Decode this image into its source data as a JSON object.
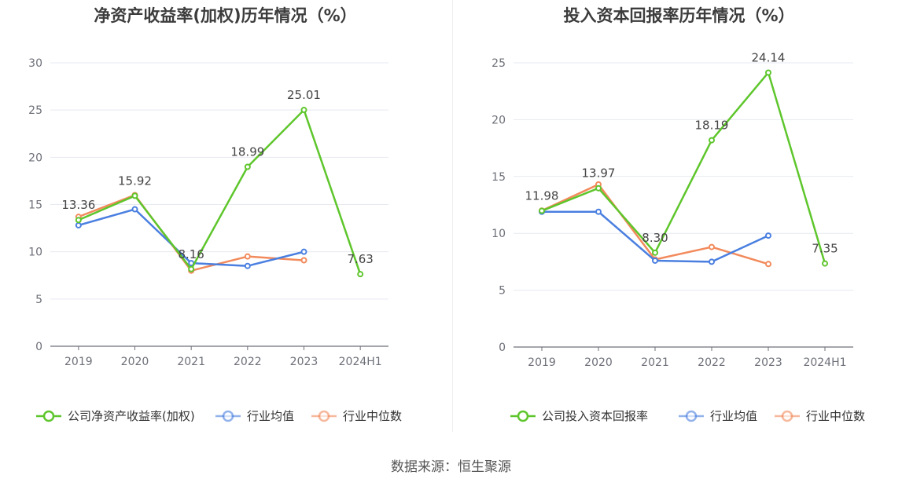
{
  "colors": {
    "company": "#5ec62c",
    "industry_avg": "#4a7fe0",
    "industry_median": "#f28a5c",
    "grid": "#e6e9f0",
    "axis": "#6e7079"
  },
  "source": "数据来源：恒生聚源",
  "chart_data": [
    {
      "type": "line",
      "title": "净资产收益率(加权)历年情况（%）",
      "categories": [
        "2019",
        "2020",
        "2021",
        "2022",
        "2023",
        "2024H1"
      ],
      "ylim": [
        0,
        30
      ],
      "yticks": [
        0,
        5,
        10,
        15,
        20,
        25,
        30
      ],
      "grid": true,
      "legend_position": "bottom",
      "series": [
        {
          "name": "公司净资产收益率(加权)",
          "color_key": "company",
          "values": [
            13.36,
            15.92,
            8.16,
            18.99,
            25.01,
            7.63
          ],
          "labels": [
            "13.36",
            "15.92",
            "8.16",
            "18.99",
            "25.01",
            "7.63"
          ]
        },
        {
          "name": "行业均值",
          "color_key": "industry_avg",
          "values": [
            12.8,
            14.5,
            8.8,
            8.5,
            10.0,
            null
          ]
        },
        {
          "name": "行业中位数",
          "color_key": "industry_median",
          "values": [
            13.7,
            16.0,
            8.0,
            9.5,
            9.1,
            null
          ]
        }
      ]
    },
    {
      "type": "line",
      "title": "投入资本回报率历年情况（%）",
      "categories": [
        "2019",
        "2020",
        "2021",
        "2022",
        "2023",
        "2024H1"
      ],
      "ylim": [
        0,
        25
      ],
      "yticks": [
        0,
        5,
        10,
        15,
        20,
        25
      ],
      "grid": true,
      "legend_position": "bottom",
      "series": [
        {
          "name": "公司投入资本回报率",
          "color_key": "company",
          "values": [
            11.98,
            13.97,
            8.3,
            18.19,
            24.14,
            7.35
          ],
          "labels": [
            "11.98",
            "13.97",
            "8.30",
            "18.19",
            "24.14",
            "7.35"
          ]
        },
        {
          "name": "行业均值",
          "color_key": "industry_avg",
          "values": [
            11.9,
            11.9,
            7.6,
            7.5,
            9.8,
            null
          ]
        },
        {
          "name": "行业中位数",
          "color_key": "industry_median",
          "values": [
            12.0,
            14.3,
            7.7,
            8.8,
            7.3,
            null
          ]
        }
      ]
    }
  ]
}
